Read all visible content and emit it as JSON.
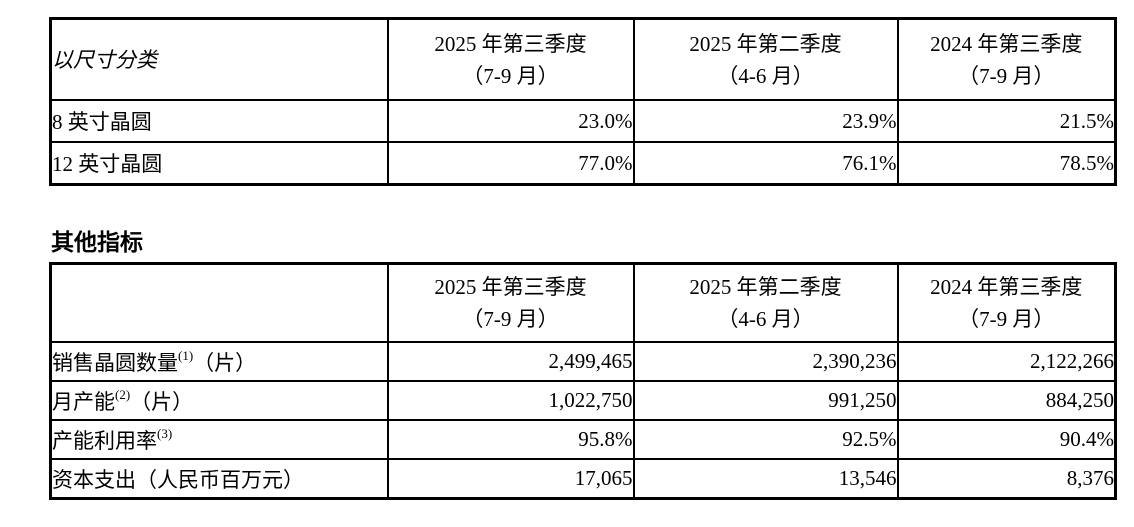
{
  "size_table": {
    "corner_label": "以尺寸分类",
    "col_headers": [
      {
        "line1": "2025 年第三季度",
        "line2": "（7-9 月）"
      },
      {
        "line1": "2025 年第二季度",
        "line2": "（4-6 月）"
      },
      {
        "line1": "2024 年第三季度",
        "line2": "（7-9 月）"
      }
    ],
    "rows": [
      {
        "label": "8 英寸晶圆",
        "values": [
          "23.0%",
          "23.9%",
          "21.5%"
        ]
      },
      {
        "label": "12 英寸晶圆",
        "values": [
          "77.0%",
          "76.1%",
          "78.5%"
        ]
      }
    ]
  },
  "section_heading": "其他指标",
  "metrics_table": {
    "corner_label": "",
    "col_headers": [
      {
        "line1": "2025 年第三季度",
        "line2": "（7-9 月）"
      },
      {
        "line1": "2025 年第二季度",
        "line2": "（4-6 月）"
      },
      {
        "line1": "2024 年第三季度",
        "line2": "（7-9 月）"
      }
    ],
    "rows": [
      {
        "label": "销售晶圆数量",
        "sup": "(1)",
        "suffix": "（片）",
        "values": [
          "2,499,465",
          "2,390,236",
          "2,122,266"
        ]
      },
      {
        "label": "月产能",
        "sup": "(2)",
        "suffix": "（片）",
        "values": [
          "1,022,750",
          "991,250",
          "884,250"
        ]
      },
      {
        "label": "产能利用率",
        "sup": "(3)",
        "suffix": "",
        "values": [
          "95.8%",
          "92.5%",
          "90.4%"
        ]
      },
      {
        "label": "资本支出（人民币百万元）",
        "sup": "",
        "suffix": "",
        "values": [
          "17,065",
          "13,546",
          "8,376"
        ]
      }
    ]
  }
}
